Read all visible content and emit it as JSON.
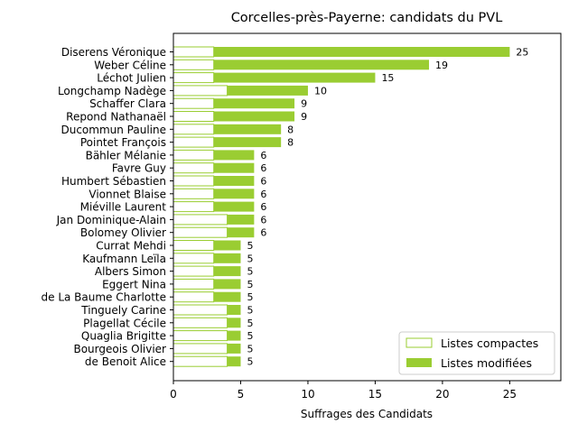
{
  "chart_data": {
    "type": "bar",
    "orientation": "horizontal",
    "stacked": true,
    "title": "Corcelles-près-Payerne: candidats du PVL",
    "xlabel": "Suffrages des Candidats",
    "ylabel": "",
    "xlim": [
      0,
      28.8
    ],
    "xticks": [
      0,
      5,
      10,
      15,
      20,
      25
    ],
    "grid": false,
    "legend_position": "lower-right",
    "categories": [
      "Diserens Véronique",
      "Weber Céline",
      "Léchot Julien",
      "Longchamp Nadège",
      "Schaffer Clara",
      "Repond Nathanaël",
      "Ducommun Pauline",
      "Pointet François",
      "Bähler Mélanie",
      "Favre Guy",
      "Humbert Sébastien",
      "Vionnet Blaise",
      "Miéville Laurent",
      "Jan Dominique-Alain",
      "Bolomey Olivier",
      "Currat Mehdi",
      "Kaufmann Leïla",
      "Albers Simon",
      "Eggert Nina",
      "de La Baume Charlotte",
      "Tinguely Carine",
      "Plagellat Cécile",
      "Quaglia Brigitte",
      "Bourgeois Olivier",
      "de Benoit Alice"
    ],
    "series": [
      {
        "name": "Listes compactes",
        "color": "#9acd32",
        "style": "outline",
        "values": [
          3,
          3,
          3,
          4,
          3,
          3,
          3,
          3,
          3,
          3,
          3,
          3,
          3,
          4,
          4,
          3,
          3,
          3,
          3,
          3,
          4,
          4,
          4,
          4,
          4
        ]
      },
      {
        "name": "Listes modifiées",
        "color": "#9acd32",
        "style": "filled",
        "values": [
          22,
          16,
          12,
          6,
          6,
          6,
          5,
          5,
          3,
          3,
          3,
          3,
          3,
          2,
          2,
          2,
          2,
          2,
          2,
          2,
          1,
          1,
          1,
          1,
          1
        ]
      }
    ],
    "totals": [
      25,
      19,
      15,
      10,
      9,
      9,
      8,
      8,
      6,
      6,
      6,
      6,
      6,
      6,
      6,
      5,
      5,
      5,
      5,
      5,
      5,
      5,
      5,
      5,
      5
    ]
  }
}
